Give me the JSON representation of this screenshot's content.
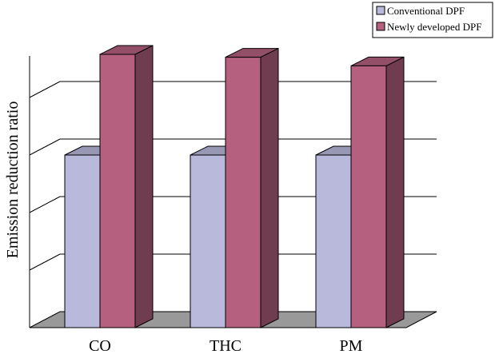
{
  "chart_data": {
    "type": "bar",
    "three_d": true,
    "title": "",
    "xlabel": "",
    "ylabel": "Emission reduction ratio",
    "categories": [
      "CO",
      "THC",
      "PM"
    ],
    "series": [
      {
        "name": "Conventional DPF",
        "values": [
          3.0,
          3.0,
          3.0
        ],
        "color": "#b9b9dc"
      },
      {
        "name": "Newly developed DPF",
        "values": [
          4.75,
          4.7,
          4.55
        ],
        "color": "#b5607f"
      }
    ],
    "ylim": [
      0,
      5
    ],
    "y_tick_labels_shown": false,
    "grid": true,
    "legend_position": "top-right",
    "floor_color": "#999999"
  }
}
